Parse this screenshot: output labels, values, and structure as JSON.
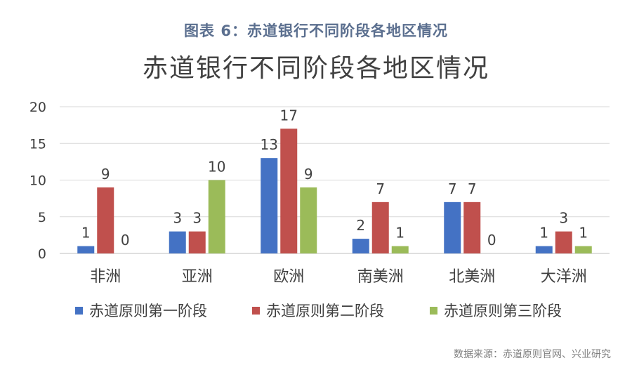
{
  "caption": "图表 6：赤道银行不同阶段各地区情况",
  "source": "数据来源：赤道原则官网、兴业研究",
  "chart_data": {
    "type": "bar",
    "title": "赤道银行不同阶段各地区情况",
    "categories": [
      "非洲",
      "亚洲",
      "欧洲",
      "南美洲",
      "北美洲",
      "大洋洲"
    ],
    "series": [
      {
        "name": "赤道原则第一阶段",
        "color": "#4472c4",
        "values": [
          1,
          3,
          13,
          2,
          7,
          1
        ]
      },
      {
        "name": "赤道原则第二阶段",
        "color": "#c0504d",
        "values": [
          9,
          3,
          17,
          7,
          7,
          3
        ]
      },
      {
        "name": "赤道原则第三阶段",
        "color": "#9bbb59",
        "values": [
          0,
          10,
          9,
          1,
          0,
          1
        ]
      }
    ],
    "ylim": [
      0,
      20
    ],
    "yticks": [
      0,
      5,
      10,
      15,
      20
    ],
    "grid": true,
    "legend": "bottom"
  }
}
